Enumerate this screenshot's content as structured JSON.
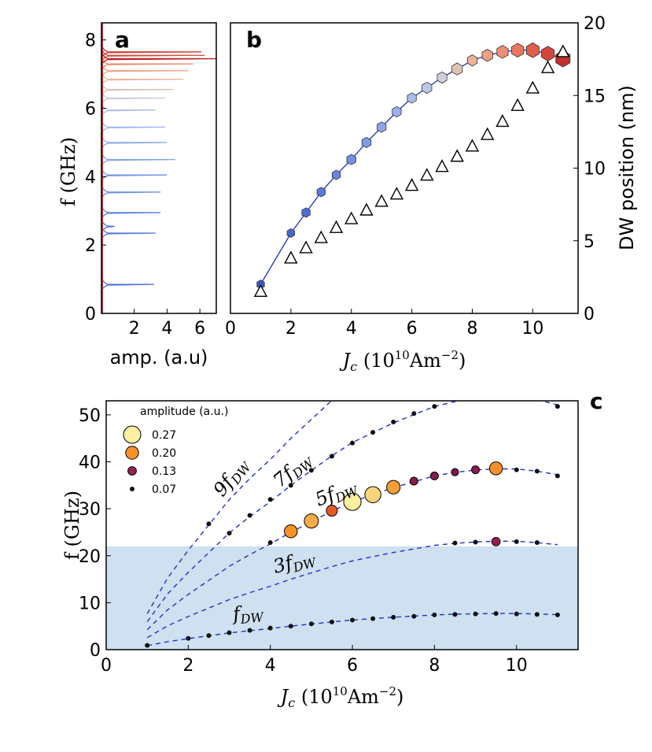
{
  "chart_data": [
    {
      "panel": "a",
      "type": "line",
      "xlabel": "amp. (a.u)",
      "ylabel": "f (GHz)",
      "xlim": [
        0,
        7
      ],
      "ylim": [
        0,
        8.5
      ],
      "xticks": [
        2,
        4,
        6
      ],
      "yticks": [
        0,
        2,
        4,
        6,
        8
      ],
      "spectra": [
        {
          "peaks": [
            {
              "f": 0.85,
              "amp": 3.2
            },
            {
              "f": 2.55,
              "amp": 0.8
            }
          ],
          "color": "#4a6fd8"
        },
        {
          "peaks": [
            {
              "f": 2.35,
              "amp": 3.3
            }
          ],
          "color": "#5478dc"
        },
        {
          "peaks": [
            {
              "f": 2.95,
              "amp": 3.6
            }
          ],
          "color": "#5f82df"
        },
        {
          "peaks": [
            {
              "f": 3.55,
              "amp": 3.6
            }
          ],
          "color": "#6a8ce2"
        },
        {
          "peaks": [
            {
              "f": 4.05,
              "amp": 4.0
            }
          ],
          "color": "#7596e5"
        },
        {
          "peaks": [
            {
              "f": 4.5,
              "amp": 4.5
            }
          ],
          "color": "#82a0e8"
        },
        {
          "peaks": [
            {
              "f": 5.0,
              "amp": 4.0
            }
          ],
          "color": "#90aaea"
        },
        {
          "peaks": [
            {
              "f": 5.45,
              "amp": 3.9
            }
          ],
          "color": "#9fb5ec"
        },
        {
          "peaks": [
            {
              "f": 5.95,
              "amp": 3.3
            }
          ],
          "color": "#b0c0ea"
        },
        {
          "peaks": [
            {
              "f": 6.3,
              "amp": 3.9
            }
          ],
          "color": "#c8c8dc"
        },
        {
          "peaks": [
            {
              "f": 6.55,
              "amp": 4.4
            }
          ],
          "color": "#dcbfb4"
        },
        {
          "peaks": [
            {
              "f": 6.85,
              "amp": 5.0
            }
          ],
          "color": "#eab49c"
        },
        {
          "peaks": [
            {
              "f": 7.1,
              "amp": 5.3
            }
          ],
          "color": "#eea282"
        },
        {
          "peaks": [
            {
              "f": 7.3,
              "amp": 5.6
            }
          ],
          "color": "#e8876a"
        },
        {
          "peaks": [
            {
              "f": 7.45,
              "amp": 6.0
            }
          ],
          "color": "#e06a52"
        },
        {
          "peaks": [
            {
              "f": 7.55,
              "amp": 6.3
            }
          ],
          "color": "#d44c3c"
        },
        {
          "peaks": [
            {
              "f": 7.65,
              "amp": 6.1
            }
          ],
          "color": "#c83530"
        },
        {
          "peaks": [
            {
              "f": 7.45,
              "amp": 7.0
            }
          ],
          "color": "#b82424"
        }
      ]
    },
    {
      "panel": "b",
      "type": "scatter",
      "xlabel": "J_c (10^10 Am^-2)",
      "ylabel_left": "",
      "ylabel_right": "DW position (nm)",
      "xlim": [
        0,
        11.5
      ],
      "ylim_left": [
        0,
        8.5
      ],
      "ylim_right": [
        0,
        20
      ],
      "xticks": [
        0,
        2,
        4,
        6,
        8,
        10
      ],
      "yticks_right": [
        0,
        5,
        10,
        15,
        20
      ],
      "frequency_series": {
        "name": "f (GHz)",
        "x": [
          1,
          2,
          2.5,
          3,
          3.5,
          4,
          4.5,
          5,
          5.5,
          6,
          6.5,
          7,
          7.5,
          8,
          8.5,
          9,
          9.5,
          10,
          10.5,
          11
        ],
        "y": [
          0.85,
          2.35,
          2.95,
          3.55,
          4.05,
          4.5,
          5.0,
          5.45,
          5.9,
          6.3,
          6.6,
          6.9,
          7.15,
          7.4,
          7.55,
          7.65,
          7.7,
          7.7,
          7.6,
          7.45
        ],
        "colors": [
          "#3a5bc7",
          "#4466d0",
          "#4f70d6",
          "#5a7adb",
          "#6585df",
          "#7190e3",
          "#7e9be7",
          "#8ca6ea",
          "#9ab1ec",
          "#aabcec",
          "#bcc7e8",
          "#cfcedc",
          "#e0c2b2",
          "#ecb197",
          "#f1a083",
          "#ef8d70",
          "#ea7760",
          "#e05e4e",
          "#d2463c",
          "#c0302c"
        ],
        "sizes": [
          1,
          1,
          1.1,
          1.1,
          1.1,
          1.2,
          1.2,
          1.2,
          1.2,
          1.2,
          1.3,
          1.3,
          1.4,
          1.3,
          1.4,
          1.5,
          1.6,
          1.7,
          1.7,
          1.9
        ]
      },
      "dw_position_series": {
        "name": "DW position (nm)",
        "x": [
          1,
          2,
          2.5,
          3,
          3.5,
          4,
          4.5,
          5,
          5.5,
          6,
          6.5,
          7,
          7.5,
          8,
          8.5,
          9,
          9.5,
          10,
          10.5,
          11
        ],
        "y": [
          1.5,
          3.8,
          4.5,
          5.2,
          5.9,
          6.5,
          7.1,
          7.7,
          8.2,
          8.8,
          9.5,
          10.1,
          10.8,
          11.5,
          12.3,
          13.2,
          14.3,
          15.5,
          16.9,
          18.0
        ]
      }
    },
    {
      "panel": "c",
      "type": "scatter",
      "xlabel": "J_c (10^10 Am^-2)",
      "ylabel": "f (GHz)",
      "xlim": [
        0,
        11.5
      ],
      "ylim": [
        0,
        53
      ],
      "xticks": [
        0,
        2,
        4,
        6,
        8,
        10
      ],
      "yticks": [
        0,
        10,
        20,
        30,
        40,
        50
      ],
      "shaded_band": {
        "y_from": 0,
        "y_to": 22,
        "color": "#cfe0f0"
      },
      "legend": {
        "title": "amplitude (a.u.)",
        "placement": "top-left",
        "entries": [
          {
            "label": "0.27",
            "amp": 0.27
          },
          {
            "label": "0.20",
            "amp": 0.2
          },
          {
            "label": "0.13",
            "amp": 0.13
          },
          {
            "label": "0.07",
            "amp": 0.07
          }
        ]
      },
      "curve_labels": [
        "9f_DW",
        "7f_DW",
        "5f_DW",
        "3f_DW",
        "f_DW"
      ],
      "harmonic_multipliers": [
        1,
        3,
        5,
        7,
        9
      ],
      "fundamental_curve": {
        "x": [
          1,
          1.5,
          2,
          2.5,
          3,
          3.5,
          4,
          4.5,
          5,
          5.5,
          6,
          6.5,
          7,
          7.5,
          8,
          8.5,
          9,
          9.5,
          10,
          10.5,
          11
        ],
        "y": [
          0.85,
          1.7,
          2.35,
          2.95,
          3.55,
          4.05,
          4.5,
          5.0,
          5.45,
          5.9,
          6.3,
          6.6,
          6.9,
          7.15,
          7.4,
          7.55,
          7.65,
          7.7,
          7.7,
          7.6,
          7.45
        ]
      },
      "points": [
        {
          "x": 1,
          "y": 0.9,
          "amp": 0.07
        },
        {
          "x": 2,
          "y": 2.4,
          "amp": 0.07
        },
        {
          "x": 2.5,
          "y": 3.0,
          "amp": 0.07
        },
        {
          "x": 3,
          "y": 3.6,
          "amp": 0.07
        },
        {
          "x": 3.5,
          "y": 4.1,
          "amp": 0.07
        },
        {
          "x": 4,
          "y": 4.6,
          "amp": 0.07
        },
        {
          "x": 4.5,
          "y": 5.0,
          "amp": 0.07
        },
        {
          "x": 5,
          "y": 5.5,
          "amp": 0.07
        },
        {
          "x": 5.5,
          "y": 5.9,
          "amp": 0.07
        },
        {
          "x": 6,
          "y": 6.3,
          "amp": 0.07
        },
        {
          "x": 6.5,
          "y": 6.6,
          "amp": 0.07
        },
        {
          "x": 7,
          "y": 6.9,
          "amp": 0.07
        },
        {
          "x": 7.5,
          "y": 7.1,
          "amp": 0.07
        },
        {
          "x": 8,
          "y": 7.4,
          "amp": 0.07
        },
        {
          "x": 8.5,
          "y": 7.5,
          "amp": 0.07
        },
        {
          "x": 9,
          "y": 7.6,
          "amp": 0.07
        },
        {
          "x": 9.5,
          "y": 7.7,
          "amp": 0.07
        },
        {
          "x": 10,
          "y": 7.6,
          "amp": 0.07
        },
        {
          "x": 10.5,
          "y": 7.5,
          "amp": 0.07
        },
        {
          "x": 11,
          "y": 7.4,
          "amp": 0.07
        },
        {
          "x": 8.5,
          "y": 22.7,
          "amp": 0.07
        },
        {
          "x": 9,
          "y": 22.9,
          "amp": 0.07
        },
        {
          "x": 9.5,
          "y": 23.0,
          "amp": 0.13
        },
        {
          "x": 10,
          "y": 23.0,
          "amp": 0.07
        },
        {
          "x": 10.5,
          "y": 22.8,
          "amp": 0.07
        },
        {
          "x": 4,
          "y": 22.8,
          "amp": 0.07
        },
        {
          "x": 4.5,
          "y": 25.2,
          "amp": 0.2
        },
        {
          "x": 5,
          "y": 27.4,
          "amp": 0.22
        },
        {
          "x": 5.5,
          "y": 29.6,
          "amp": 0.17
        },
        {
          "x": 6,
          "y": 31.5,
          "amp": 0.27
        },
        {
          "x": 6.5,
          "y": 33.0,
          "amp": 0.25
        },
        {
          "x": 7,
          "y": 34.6,
          "amp": 0.21
        },
        {
          "x": 7.5,
          "y": 35.9,
          "amp": 0.12
        },
        {
          "x": 8,
          "y": 37.0,
          "amp": 0.12
        },
        {
          "x": 8.5,
          "y": 37.8,
          "amp": 0.11
        },
        {
          "x": 9,
          "y": 38.3,
          "amp": 0.12
        },
        {
          "x": 9.5,
          "y": 38.6,
          "amp": 0.2
        },
        {
          "x": 10,
          "y": 38.3,
          "amp": 0.07
        },
        {
          "x": 10.5,
          "y": 38.0,
          "amp": 0.07
        },
        {
          "x": 11,
          "y": 37.0,
          "amp": 0.07
        },
        {
          "x": 2.5,
          "y": 26.8,
          "amp": 0.07
        },
        {
          "x": 3,
          "y": 24.8,
          "amp": 0.07
        },
        {
          "x": 3.5,
          "y": 28.6,
          "amp": 0.07
        },
        {
          "x": 4,
          "y": 32.0,
          "amp": 0.07
        },
        {
          "x": 4.5,
          "y": 35.0,
          "amp": 0.07
        },
        {
          "x": 5,
          "y": 38.2,
          "amp": 0.07
        },
        {
          "x": 5.5,
          "y": 41.2,
          "amp": 0.07
        },
        {
          "x": 6,
          "y": 44.0,
          "amp": 0.07
        },
        {
          "x": 6.5,
          "y": 46.3,
          "amp": 0.07
        },
        {
          "x": 7,
          "y": 48.5,
          "amp": 0.07
        },
        {
          "x": 7.5,
          "y": 50.3,
          "amp": 0.07
        },
        {
          "x": 8,
          "y": 51.8,
          "amp": 0.07
        },
        {
          "x": 11,
          "y": 51.8,
          "amp": 0.07
        }
      ]
    }
  ]
}
